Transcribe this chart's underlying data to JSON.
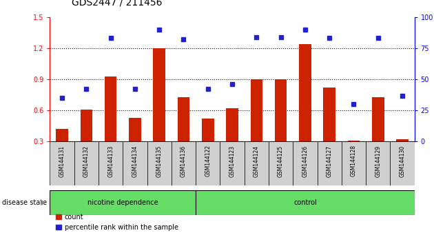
{
  "title": "GDS2447 / 211456",
  "samples": [
    "GSM144131",
    "GSM144132",
    "GSM144133",
    "GSM144134",
    "GSM144135",
    "GSM144136",
    "GSM144122",
    "GSM144123",
    "GSM144124",
    "GSM144125",
    "GSM144126",
    "GSM144127",
    "GSM144128",
    "GSM144129",
    "GSM144130"
  ],
  "counts": [
    0.42,
    0.61,
    0.93,
    0.53,
    1.2,
    0.73,
    0.52,
    0.62,
    0.9,
    0.9,
    1.24,
    0.82,
    0.31,
    0.73,
    0.32
  ],
  "percentiles": [
    35,
    42,
    83,
    42,
    90,
    82,
    42,
    46,
    84,
    84,
    90,
    83,
    30,
    83,
    37
  ],
  "bar_color": "#cc2200",
  "dot_color": "#2222cc",
  "ylim_left": [
    0.3,
    1.5
  ],
  "ylim_right": [
    0,
    100
  ],
  "yticks_left": [
    0.3,
    0.6,
    0.9,
    1.2,
    1.5
  ],
  "yticks_right": [
    0,
    25,
    50,
    75,
    100
  ],
  "title_fontsize": 10,
  "tick_fontsize": 7,
  "label_fontsize": 7,
  "nicotine_count": 6,
  "control_count": 9,
  "group_color": "#66dd66"
}
